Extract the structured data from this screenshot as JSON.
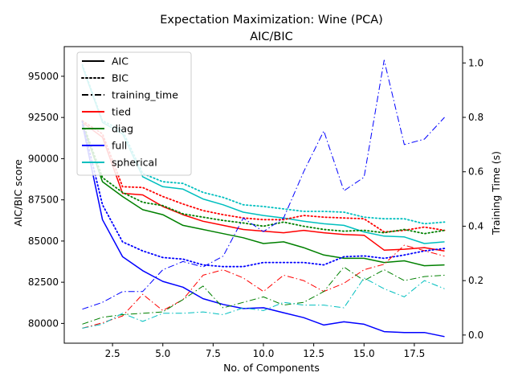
{
  "chart_data": {
    "type": "line",
    "title": "Expectation Maximization: Wine (PCA)",
    "subtitle": "AIC/BIC",
    "xlabel": "No. of Components",
    "ylabel": "AIC/BIC score",
    "y2label": "Training Time (s)",
    "xlim": [
      0.1,
      19.9
    ],
    "ylim": [
      78800,
      96800
    ],
    "y2lim": [
      -0.03,
      1.06
    ],
    "xticks": [
      2.5,
      5.0,
      7.5,
      10.0,
      12.5,
      15.0,
      17.5
    ],
    "xtick_labels": [
      "2.5",
      "5.0",
      "7.5",
      "10.0",
      "12.5",
      "15.0",
      "17.5"
    ],
    "yticks": [
      80000,
      82500,
      85000,
      87500,
      90000,
      92500,
      95000
    ],
    "ytick_labels": [
      "80000",
      "82500",
      "85000",
      "87500",
      "90000",
      "92500",
      "95000"
    ],
    "y2ticks": [
      0.0,
      0.2,
      0.4,
      0.6,
      0.8,
      1.0
    ],
    "y2tick_labels": [
      "0.0",
      "0.2",
      "0.4",
      "0.6",
      "0.8",
      "1.0"
    ],
    "grid": false,
    "legend_position": "top-left",
    "legend": [
      {
        "label": "AIC",
        "style": "solid",
        "color": "#000000"
      },
      {
        "label": "BIC",
        "style": "dotted",
        "color": "#000000"
      },
      {
        "label": "training_time",
        "style": "dashdot",
        "color": "#000000"
      },
      {
        "label": "tied",
        "style": "solid",
        "color": "#ff0000"
      },
      {
        "label": "diag",
        "style": "solid",
        "color": "#008000"
      },
      {
        "label": "full",
        "style": "solid",
        "color": "#0000ff"
      },
      {
        "label": "spherical",
        "style": "solid",
        "color": "#00bfbf"
      }
    ],
    "x": [
      1,
      2,
      3,
      4,
      5,
      6,
      7,
      8,
      9,
      10,
      11,
      12,
      13,
      14,
      15,
      16,
      17,
      18,
      19
    ],
    "series": [
      {
        "name": "tied",
        "metric": "AIC",
        "color": "#ff0000",
        "style": "solid",
        "axis": "left",
        "values": [
          92200,
          91300,
          87900,
          87800,
          87100,
          86600,
          86200,
          85950,
          85700,
          85600,
          85500,
          85650,
          85500,
          85400,
          85350,
          84450,
          84500,
          84600,
          84400
        ]
      },
      {
        "name": "diag",
        "metric": "AIC",
        "color": "#008000",
        "style": "solid",
        "axis": "left",
        "values": [
          92100,
          88600,
          87700,
          86900,
          86600,
          85950,
          85700,
          85450,
          85200,
          84850,
          84950,
          84600,
          84150,
          83950,
          83950,
          83700,
          83800,
          83500,
          83550
        ]
      },
      {
        "name": "full",
        "metric": "AIC",
        "color": "#0000ff",
        "style": "solid",
        "axis": "left",
        "values": [
          92100,
          86300,
          84050,
          83200,
          82550,
          82200,
          81500,
          81150,
          80900,
          80950,
          80650,
          80350,
          79900,
          80100,
          79950,
          79500,
          79450,
          79450,
          79200
        ]
      },
      {
        "name": "spherical",
        "metric": "AIC",
        "color": "#00bfbf",
        "style": "solid",
        "axis": "left",
        "values": [
          95600,
          92200,
          91500,
          88900,
          88300,
          88150,
          87550,
          87200,
          86750,
          86550,
          86400,
          86200,
          86050,
          85950,
          85550,
          85300,
          85250,
          84850,
          84950
        ]
      },
      {
        "name": "tied",
        "metric": "BIC",
        "color": "#ff0000",
        "style": "dotted",
        "axis": "left",
        "values": [
          92300,
          91500,
          88300,
          88250,
          87700,
          87250,
          86850,
          86600,
          86400,
          86300,
          86300,
          86550,
          86450,
          86400,
          86350,
          85550,
          85650,
          85850,
          85650
        ]
      },
      {
        "name": "diag",
        "metric": "BIC",
        "color": "#008000",
        "style": "dotted",
        "axis": "left",
        "values": [
          92250,
          88850,
          87950,
          87350,
          87150,
          86650,
          86450,
          86250,
          86100,
          85900,
          86150,
          85900,
          85700,
          85600,
          85650,
          85500,
          85700,
          85450,
          85650
        ]
      },
      {
        "name": "full",
        "metric": "BIC",
        "color": "#0000ff",
        "style": "dotted",
        "axis": "left",
        "values": [
          92250,
          87200,
          84950,
          84400,
          84000,
          83900,
          83550,
          83450,
          83450,
          83700,
          83700,
          83700,
          83550,
          84050,
          84100,
          83950,
          84150,
          84400,
          84550
        ]
      },
      {
        "name": "spherical",
        "metric": "BIC",
        "color": "#00bfbf",
        "style": "dotted",
        "axis": "left",
        "values": [
          95700,
          92300,
          91700,
          89100,
          88600,
          88500,
          87950,
          87650,
          87200,
          87100,
          86950,
          86800,
          86800,
          86750,
          86450,
          86350,
          86350,
          86050,
          86150
        ]
      },
      {
        "name": "tied",
        "metric": "training_time",
        "color": "#ff0000",
        "style": "dashdot",
        "axis": "right",
        "values": [
          0.025,
          0.045,
          0.07,
          0.15,
          0.09,
          0.13,
          0.22,
          0.24,
          0.21,
          0.16,
          0.22,
          0.2,
          0.16,
          0.19,
          0.24,
          0.26,
          0.33,
          0.31,
          0.29
        ]
      },
      {
        "name": "diag",
        "metric": "training_time",
        "color": "#008000",
        "style": "dashdot",
        "axis": "right",
        "values": [
          0.04,
          0.065,
          0.075,
          0.08,
          0.085,
          0.13,
          0.18,
          0.1,
          0.12,
          0.14,
          0.11,
          0.12,
          0.16,
          0.25,
          0.2,
          0.24,
          0.2,
          0.215,
          0.22
        ]
      },
      {
        "name": "full",
        "metric": "training_time",
        "color": "#0000ff",
        "style": "dashdot",
        "axis": "right",
        "values": [
          0.095,
          0.12,
          0.16,
          0.16,
          0.24,
          0.27,
          0.25,
          0.29,
          0.43,
          0.38,
          0.43,
          0.6,
          0.75,
          0.53,
          0.58,
          1.01,
          0.7,
          0.72,
          0.8
        ]
      },
      {
        "name": "spherical",
        "metric": "training_time",
        "color": "#00bfbf",
        "style": "dashdot",
        "axis": "right",
        "values": [
          0.025,
          0.04,
          0.08,
          0.05,
          0.08,
          0.08,
          0.085,
          0.075,
          0.1,
          0.09,
          0.12,
          0.11,
          0.11,
          0.1,
          0.21,
          0.17,
          0.14,
          0.2,
          0.17
        ]
      }
    ]
  }
}
